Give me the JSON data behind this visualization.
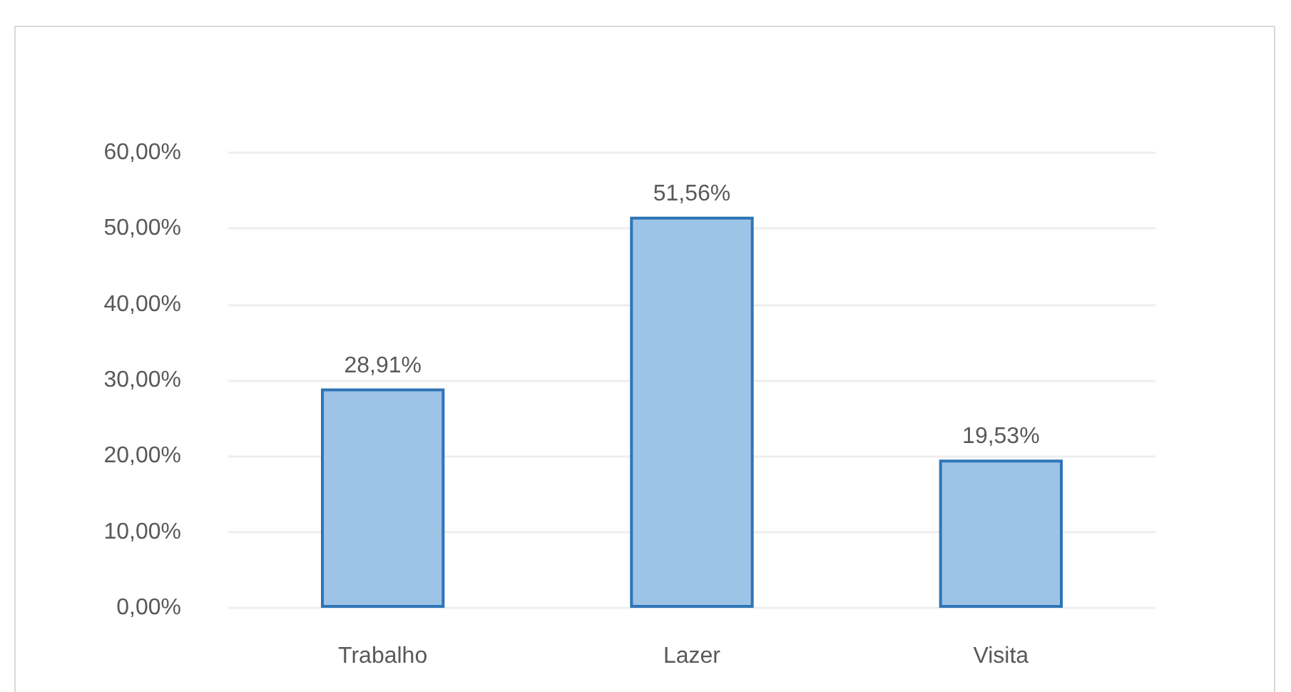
{
  "chart_data": {
    "type": "bar",
    "categories": [
      "Trabalho",
      "Lazer",
      "Visita"
    ],
    "values": [
      28.91,
      51.56,
      19.53
    ],
    "color": "#9dc3e6",
    "value_labels": [
      "28,91%",
      "51,56%",
      "19,53%"
    ],
    "ylim": [
      0,
      60
    ],
    "yticks": [
      {
        "value": 0,
        "label": "0,00%"
      },
      {
        "value": 10,
        "label": "10,00%"
      },
      {
        "value": 20,
        "label": "20,00%"
      },
      {
        "value": 30,
        "label": "30,00%"
      },
      {
        "value": 40,
        "label": "40,00%"
      },
      {
        "value": 50,
        "label": "50,00%"
      },
      {
        "value": 60,
        "label": "60,00%"
      }
    ],
    "grid": "y"
  }
}
